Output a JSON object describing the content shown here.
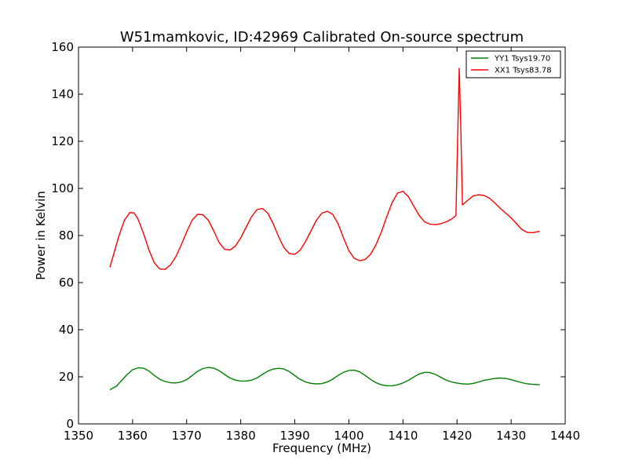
{
  "chart_data": {
    "type": "line",
    "title": "W51mamkovic, ID:42969 Calibrated On-source spectrum",
    "xlabel": "Frequency (MHz)",
    "ylabel": "Power in Kelvin",
    "xlim": [
      1350,
      1440
    ],
    "ylim": [
      0,
      160
    ],
    "xticks": [
      1350,
      1360,
      1370,
      1380,
      1390,
      1400,
      1410,
      1420,
      1430,
      1440
    ],
    "yticks": [
      0,
      20,
      40,
      60,
      80,
      100,
      120,
      140,
      160
    ],
    "grid": false,
    "legend_position": "top-right",
    "series": [
      {
        "name": "YY1 Tsys19.70",
        "color": "#008000",
        "points": [
          [
            1355.8,
            14.5
          ],
          [
            1357.0,
            16.0
          ],
          [
            1358.0,
            18.5
          ],
          [
            1359.0,
            21.0
          ],
          [
            1360.0,
            23.0
          ],
          [
            1361.0,
            23.8
          ],
          [
            1362.0,
            23.7
          ],
          [
            1363.0,
            22.5
          ],
          [
            1364.0,
            20.6
          ],
          [
            1365.0,
            19.0
          ],
          [
            1366.0,
            18.0
          ],
          [
            1367.0,
            17.5
          ],
          [
            1368.0,
            17.4
          ],
          [
            1369.0,
            17.8
          ],
          [
            1370.0,
            18.8
          ],
          [
            1371.0,
            20.5
          ],
          [
            1372.0,
            22.3
          ],
          [
            1373.0,
            23.5
          ],
          [
            1374.0,
            24.0
          ],
          [
            1375.0,
            23.7
          ],
          [
            1376.0,
            22.6
          ],
          [
            1377.0,
            21.0
          ],
          [
            1378.0,
            19.5
          ],
          [
            1379.0,
            18.6
          ],
          [
            1380.0,
            18.2
          ],
          [
            1381.0,
            18.2
          ],
          [
            1382.0,
            18.6
          ],
          [
            1383.0,
            19.5
          ],
          [
            1384.0,
            21.0
          ],
          [
            1385.0,
            22.4
          ],
          [
            1386.0,
            23.3
          ],
          [
            1387.0,
            23.6
          ],
          [
            1388.0,
            23.3
          ],
          [
            1389.0,
            22.2
          ],
          [
            1390.0,
            20.5
          ],
          [
            1391.0,
            18.9
          ],
          [
            1392.0,
            17.8
          ],
          [
            1393.0,
            17.2
          ],
          [
            1394.0,
            17.0
          ],
          [
            1395.0,
            17.1
          ],
          [
            1396.0,
            17.8
          ],
          [
            1397.0,
            19.0
          ],
          [
            1398.0,
            20.6
          ],
          [
            1399.0,
            21.9
          ],
          [
            1400.0,
            22.7
          ],
          [
            1401.0,
            22.8
          ],
          [
            1402.0,
            22.1
          ],
          [
            1403.0,
            20.6
          ],
          [
            1404.0,
            18.9
          ],
          [
            1405.0,
            17.5
          ],
          [
            1406.0,
            16.6
          ],
          [
            1407.0,
            16.2
          ],
          [
            1408.0,
            16.2
          ],
          [
            1409.0,
            16.6
          ],
          [
            1410.0,
            17.4
          ],
          [
            1411.0,
            18.5
          ],
          [
            1412.0,
            19.9
          ],
          [
            1413.0,
            21.2
          ],
          [
            1414.0,
            21.9
          ],
          [
            1415.0,
            21.8
          ],
          [
            1416.0,
            21.0
          ],
          [
            1417.0,
            19.8
          ],
          [
            1418.0,
            18.6
          ],
          [
            1419.0,
            17.8
          ],
          [
            1420.0,
            17.3
          ],
          [
            1421.0,
            17.0
          ],
          [
            1422.0,
            16.9
          ],
          [
            1423.0,
            17.2
          ],
          [
            1424.0,
            17.8
          ],
          [
            1425.0,
            18.5
          ],
          [
            1426.0,
            18.9
          ],
          [
            1427.0,
            19.3
          ],
          [
            1428.0,
            19.5
          ],
          [
            1429.0,
            19.3
          ],
          [
            1430.0,
            18.8
          ],
          [
            1431.0,
            18.1
          ],
          [
            1432.0,
            17.5
          ],
          [
            1433.0,
            17.0
          ],
          [
            1434.0,
            16.8
          ],
          [
            1435.3,
            16.6
          ]
        ]
      },
      {
        "name": "XX1 Tsys83.78",
        "color": "#ff0000",
        "points": [
          [
            1355.8,
            66.5
          ],
          [
            1356.5,
            72.0
          ],
          [
            1357.5,
            80.0
          ],
          [
            1358.5,
            86.5
          ],
          [
            1359.5,
            89.8
          ],
          [
            1360.3,
            89.5
          ],
          [
            1361.0,
            87.0
          ],
          [
            1362.0,
            81.0
          ],
          [
            1363.0,
            74.0
          ],
          [
            1364.0,
            68.5
          ],
          [
            1365.0,
            65.8
          ],
          [
            1366.0,
            65.6
          ],
          [
            1367.0,
            67.5
          ],
          [
            1368.0,
            71.0
          ],
          [
            1369.0,
            76.0
          ],
          [
            1370.0,
            81.5
          ],
          [
            1371.0,
            86.5
          ],
          [
            1372.0,
            89.0
          ],
          [
            1373.0,
            88.8
          ],
          [
            1374.0,
            86.5
          ],
          [
            1375.0,
            82.0
          ],
          [
            1376.0,
            77.0
          ],
          [
            1377.0,
            74.2
          ],
          [
            1378.0,
            73.8
          ],
          [
            1379.0,
            75.5
          ],
          [
            1380.0,
            79.0
          ],
          [
            1381.0,
            83.5
          ],
          [
            1382.0,
            88.0
          ],
          [
            1383.0,
            91.0
          ],
          [
            1384.0,
            91.5
          ],
          [
            1385.0,
            89.5
          ],
          [
            1386.0,
            85.0
          ],
          [
            1387.0,
            79.5
          ],
          [
            1388.0,
            74.8
          ],
          [
            1389.0,
            72.3
          ],
          [
            1390.0,
            72.0
          ],
          [
            1391.0,
            73.8
          ],
          [
            1392.0,
            77.5
          ],
          [
            1393.0,
            82.0
          ],
          [
            1394.0,
            86.5
          ],
          [
            1395.0,
            89.5
          ],
          [
            1396.0,
            90.3
          ],
          [
            1397.0,
            89.0
          ],
          [
            1398.0,
            85.0
          ],
          [
            1399.0,
            79.0
          ],
          [
            1400.0,
            73.5
          ],
          [
            1401.0,
            70.3
          ],
          [
            1402.0,
            69.3
          ],
          [
            1403.0,
            69.8
          ],
          [
            1404.0,
            72.0
          ],
          [
            1405.0,
            76.0
          ],
          [
            1406.0,
            81.5
          ],
          [
            1407.0,
            88.0
          ],
          [
            1408.0,
            94.0
          ],
          [
            1409.0,
            98.0
          ],
          [
            1410.0,
            98.8
          ],
          [
            1411.0,
            96.5
          ],
          [
            1412.0,
            92.5
          ],
          [
            1413.0,
            88.5
          ],
          [
            1414.0,
            85.8
          ],
          [
            1415.0,
            84.8
          ],
          [
            1416.0,
            84.6
          ],
          [
            1417.0,
            85.0
          ],
          [
            1418.0,
            85.8
          ],
          [
            1419.0,
            87.0
          ],
          [
            1419.8,
            88.5
          ],
          [
            1420.1,
            120.0
          ],
          [
            1420.4,
            151.0
          ],
          [
            1420.7,
            125.0
          ],
          [
            1421.0,
            93.0
          ],
          [
            1422.0,
            95.0
          ],
          [
            1423.0,
            96.8
          ],
          [
            1424.0,
            97.3
          ],
          [
            1425.0,
            97.0
          ],
          [
            1426.0,
            95.8
          ],
          [
            1427.0,
            93.8
          ],
          [
            1428.0,
            91.5
          ],
          [
            1429.0,
            89.5
          ],
          [
            1430.0,
            87.5
          ],
          [
            1431.0,
            85.0
          ],
          [
            1432.0,
            82.5
          ],
          [
            1433.0,
            81.3
          ],
          [
            1434.0,
            81.2
          ],
          [
            1435.3,
            81.8
          ]
        ]
      }
    ]
  }
}
